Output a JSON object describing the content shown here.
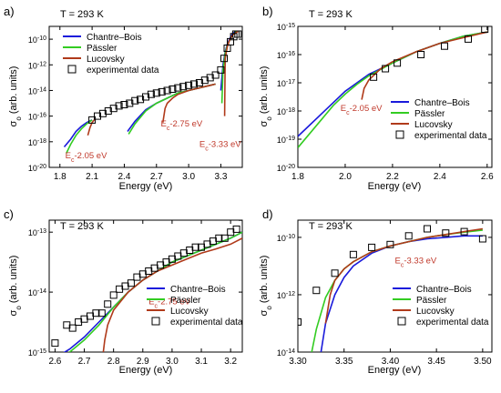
{
  "figure": {
    "colors": {
      "chantre": "#1a1adb",
      "passler": "#33cc22",
      "lucovsky": "#b03a1a",
      "annotation": "#c0392b",
      "axis": "#000000"
    }
  },
  "chart_data": [
    {
      "panel_label": "a)",
      "type": "line",
      "temperature_label": "T = 293 K",
      "xlabel": "Energy (eV)",
      "ylabel": "σ",
      "ylabel_sub": "o",
      "ylabel_units": " (arb. units)",
      "xlim": [
        1.7,
        3.5
      ],
      "ylim_exp": [
        -20,
        -9
      ],
      "yscale": "log",
      "xticks": [
        1.8,
        2.1,
        2.4,
        2.7,
        3.0,
        3.3
      ],
      "xtick_labels": [
        "1.8",
        "2.1",
        "2.4",
        "2.7",
        "3.0",
        "3.3"
      ],
      "yticks_exp": [
        -20,
        -18,
        -16,
        -14,
        -12,
        -10
      ],
      "legend": {
        "position": "top-left",
        "entries": [
          "Chantre–Bois",
          "Pässler",
          "Lucovsky",
          "experimental data"
        ]
      },
      "annotations": [
        {
          "text": "E",
          "sub": "c",
          "rest": "-2.05 eV",
          "at": [
            1.85,
            -19.3
          ]
        },
        {
          "text": "E",
          "sub": "c",
          "rest": "-2.75 eV",
          "at": [
            2.74,
            -16.8
          ]
        },
        {
          "text": "E",
          "sub": "c",
          "rest": "-3.33 eV",
          "at": [
            3.1,
            -18.4
          ]
        }
      ],
      "series": [
        {
          "name": "Chantre–Bois",
          "kind": "line",
          "segments": [
            {
              "x": [
                1.84,
                1.9,
                1.95,
                2.0,
                2.05,
                2.1
              ],
              "y_exp": [
                -18.4,
                -17.8,
                -17.2,
                -16.8,
                -16.5,
                -16.3
              ]
            },
            {
              "x": [
                2.43,
                2.5,
                2.6,
                2.7,
                2.8,
                2.9,
                3.0,
                3.1,
                3.2,
                3.25
              ],
              "y_exp": [
                -17.2,
                -16.4,
                -15.5,
                -15.0,
                -14.6,
                -14.2,
                -14.0,
                -13.8,
                -13.6,
                -13.5
              ]
            },
            {
              "x": [
                3.3,
                3.32,
                3.34,
                3.36,
                3.38,
                3.4,
                3.42,
                3.44,
                3.46
              ],
              "y_exp": [
                -14.0,
                -12.0,
                -11.0,
                -10.4,
                -10.0,
                -9.7,
                -9.5,
                -9.4,
                -9.4
              ]
            }
          ]
        },
        {
          "name": "Pässler",
          "kind": "line",
          "segments": [
            {
              "x": [
                1.86,
                1.9,
                1.95,
                2.0,
                2.05,
                2.1
              ],
              "y_exp": [
                -18.9,
                -18.2,
                -17.5,
                -17.0,
                -16.6,
                -16.3
              ]
            },
            {
              "x": [
                2.44,
                2.5,
                2.6,
                2.7,
                2.8,
                2.9,
                3.0,
                3.1,
                3.2,
                3.25
              ],
              "y_exp": [
                -17.4,
                -16.6,
                -15.6,
                -15.0,
                -14.6,
                -14.2,
                -14.0,
                -13.8,
                -13.6,
                -13.5
              ]
            },
            {
              "x": [
                3.31,
                3.32,
                3.34,
                3.36,
                3.38,
                3.4,
                3.42,
                3.44,
                3.46
              ],
              "y_exp": [
                -15.0,
                -12.4,
                -11.1,
                -10.5,
                -10.1,
                -9.8,
                -9.6,
                -9.4,
                -9.4
              ]
            }
          ]
        },
        {
          "name": "Lucovsky",
          "kind": "line",
          "segments": [
            {
              "x": [
                2.06,
                2.08,
                2.1,
                2.13
              ],
              "y_exp": [
                -17.5,
                -16.9,
                -16.5,
                -16.2
              ]
            },
            {
              "x": [
                2.76,
                2.78,
                2.8,
                2.85,
                2.9,
                3.0,
                3.1,
                3.2,
                3.25
              ],
              "y_exp": [
                -16.5,
                -15.4,
                -15.0,
                -14.6,
                -14.3,
                -14.0,
                -13.8,
                -13.6,
                -13.5
              ]
            },
            {
              "x": [
                3.335,
                3.34,
                3.36,
                3.38,
                3.4,
                3.42,
                3.44,
                3.46
              ],
              "y_exp": [
                -16.0,
                -11.5,
                -10.6,
                -10.1,
                -9.8,
                -9.6,
                -9.5,
                -9.4
              ]
            }
          ]
        },
        {
          "name": "experimental data",
          "kind": "scatter",
          "x": [
            2.1,
            2.15,
            2.2,
            2.25,
            2.3,
            2.35,
            2.4,
            2.45,
            2.5,
            2.55,
            2.6,
            2.65,
            2.7,
            2.75,
            2.8,
            2.85,
            2.9,
            2.95,
            3.0,
            3.05,
            3.1,
            3.15,
            3.2,
            3.25,
            3.3,
            3.33,
            3.36,
            3.39,
            3.42,
            3.44,
            3.46
          ],
          "y_exp": [
            -16.3,
            -16.0,
            -15.8,
            -15.6,
            -15.4,
            -15.2,
            -15.1,
            -15.0,
            -14.8,
            -14.7,
            -14.5,
            -14.3,
            -14.2,
            -14.1,
            -14.0,
            -13.9,
            -13.8,
            -13.7,
            -13.6,
            -13.5,
            -13.4,
            -13.2,
            -13.0,
            -12.8,
            -12.4,
            -11.5,
            -10.7,
            -10.2,
            -9.8,
            -9.6,
            -9.6
          ]
        }
      ]
    },
    {
      "panel_label": "b)",
      "type": "line",
      "temperature_label": "T = 293 K",
      "xlabel": "Energy (eV)",
      "ylabel": "σ",
      "ylabel_sub": "o",
      "ylabel_units": " (arb. units)",
      "xlim": [
        1.8,
        2.62
      ],
      "ylim_exp": [
        -20,
        -15
      ],
      "yscale": "log",
      "xticks": [
        1.8,
        2.0,
        2.2,
        2.4,
        2.6
      ],
      "xtick_labels": [
        "1.8",
        "2.0",
        "2.2",
        "2.4",
        "2.6"
      ],
      "yticks_exp": [
        -20,
        -19,
        -18,
        -17,
        -16,
        -15
      ],
      "legend": {
        "position": "bottom-right",
        "entries": [
          "Chantre–Bois",
          "Pässler",
          "Lucovsky",
          "experimental data"
        ]
      },
      "annotations": [
        {
          "text": "E",
          "sub": "c",
          "rest": "-2.05 eV",
          "at": [
            1.98,
            -18.0
          ]
        }
      ],
      "series": [
        {
          "name": "Chantre–Bois",
          "kind": "line",
          "segments": [
            {
              "x": [
                1.8,
                1.85,
                1.9,
                1.95,
                2.0,
                2.05,
                2.1,
                2.2,
                2.3,
                2.4,
                2.5,
                2.6
              ],
              "y_exp": [
                -18.9,
                -18.5,
                -18.1,
                -17.7,
                -17.3,
                -17.0,
                -16.7,
                -16.3,
                -15.9,
                -15.6,
                -15.35,
                -15.2
              ]
            }
          ]
        },
        {
          "name": "Pässler",
          "kind": "line",
          "segments": [
            {
              "x": [
                1.8,
                1.85,
                1.9,
                1.95,
                2.0,
                2.05,
                2.1,
                2.2,
                2.3,
                2.4,
                2.5,
                2.6
              ],
              "y_exp": [
                -19.3,
                -18.8,
                -18.3,
                -17.8,
                -17.4,
                -17.05,
                -16.75,
                -16.3,
                -15.9,
                -15.6,
                -15.35,
                -15.2
              ]
            }
          ]
        },
        {
          "name": "Lucovsky",
          "kind": "line",
          "segments": [
            {
              "x": [
                2.07,
                2.08,
                2.1,
                2.15,
                2.2,
                2.3,
                2.4,
                2.5,
                2.6
              ],
              "y_exp": [
                -17.6,
                -17.2,
                -16.9,
                -16.5,
                -16.25,
                -15.9,
                -15.6,
                -15.4,
                -15.2
              ]
            }
          ]
        },
        {
          "name": "experimental data",
          "kind": "scatter",
          "x": [
            2.12,
            2.17,
            2.22,
            2.32,
            2.42,
            2.52,
            2.59
          ],
          "y_exp": [
            -16.8,
            -16.5,
            -16.3,
            -16.0,
            -15.7,
            -15.45,
            -15.1
          ]
        }
      ]
    },
    {
      "panel_label": "c)",
      "type": "line",
      "temperature_label": "T = 293 K",
      "xlabel": "Energy (eV)",
      "ylabel": "σ",
      "ylabel_sub": "o",
      "ylabel_units": " (arb. units)",
      "xlim": [
        2.58,
        3.24
      ],
      "ylim_exp": [
        -15,
        -12.8
      ],
      "yscale": "log",
      "xticks": [
        2.6,
        2.7,
        2.8,
        2.9,
        3.0,
        3.1,
        3.2
      ],
      "xtick_labels": [
        "2.6",
        "2.7",
        "2.8",
        "2.9",
        "3.0",
        "3.1",
        "3.2"
      ],
      "yticks_exp": [
        -15,
        -14,
        -13
      ],
      "legend": {
        "position": "bottom-right",
        "entries": [
          "Chantre–Bois",
          "Pässler",
          "Lucovsky",
          "experimental data"
        ]
      },
      "annotations": [
        {
          "text": "E",
          "sub": "c",
          "rest": "-2.75 eV",
          "at": [
            2.92,
            -14.2
          ]
        }
      ],
      "series": [
        {
          "name": "Chantre–Bois",
          "kind": "line",
          "segments": [
            {
              "x": [
                2.6,
                2.65,
                2.7,
                2.75,
                2.8,
                2.85,
                2.9,
                2.95,
                3.0,
                3.05,
                3.1,
                3.15,
                3.2,
                3.24
              ],
              "y_exp": [
                -15.1,
                -14.95,
                -14.75,
                -14.5,
                -14.25,
                -14.0,
                -13.8,
                -13.65,
                -13.5,
                -13.4,
                -13.3,
                -13.2,
                -13.1,
                -13.0
              ]
            }
          ]
        },
        {
          "name": "Pässler",
          "kind": "line",
          "segments": [
            {
              "x": [
                2.6,
                2.65,
                2.7,
                2.75,
                2.8,
                2.85,
                2.9,
                2.95,
                3.0,
                3.05,
                3.1,
                3.15,
                3.2,
                3.24
              ],
              "y_exp": [
                -15.15,
                -15.0,
                -14.8,
                -14.55,
                -14.25,
                -14.0,
                -13.8,
                -13.65,
                -13.5,
                -13.4,
                -13.3,
                -13.2,
                -13.1,
                -13.0
              ]
            }
          ]
        },
        {
          "name": "Lucovsky",
          "kind": "line",
          "segments": [
            {
              "x": [
                2.765,
                2.77,
                2.78,
                2.8,
                2.85,
                2.9,
                2.95,
                3.0,
                3.05,
                3.1,
                3.15,
                3.2,
                3.24
              ],
              "y_exp": [
                -15.0,
                -14.8,
                -14.55,
                -14.3,
                -14.0,
                -13.8,
                -13.65,
                -13.55,
                -13.45,
                -13.35,
                -13.28,
                -13.2,
                -13.1
              ]
            }
          ]
        },
        {
          "name": "experimental data",
          "kind": "scatter",
          "x": [
            2.6,
            2.64,
            2.66,
            2.68,
            2.7,
            2.72,
            2.74,
            2.76,
            2.78,
            2.8,
            2.82,
            2.84,
            2.86,
            2.88,
            2.9,
            2.92,
            2.94,
            2.96,
            2.98,
            3.0,
            3.02,
            3.04,
            3.06,
            3.08,
            3.1,
            3.12,
            3.14,
            3.16,
            3.18,
            3.2,
            3.22,
            3.24
          ],
          "y_exp": [
            -14.85,
            -14.55,
            -14.6,
            -14.5,
            -14.45,
            -14.4,
            -14.35,
            -14.35,
            -14.2,
            -14.05,
            -13.95,
            -13.9,
            -13.85,
            -13.75,
            -13.7,
            -13.65,
            -13.6,
            -13.55,
            -13.5,
            -13.45,
            -13.4,
            -13.35,
            -13.3,
            -13.25,
            -13.25,
            -13.2,
            -13.15,
            -13.1,
            -13.1,
            -13.0,
            -12.95,
            -12.75
          ]
        }
      ]
    },
    {
      "panel_label": "d)",
      "type": "line",
      "temperature_label": "T = 293 K",
      "xlabel": "Energy (eV)",
      "ylabel": "σ",
      "ylabel_sub": "o",
      "ylabel_units": " (arb. units)",
      "xlim": [
        3.3,
        3.51
      ],
      "ylim_exp": [
        -14,
        -9.4
      ],
      "yscale": "log",
      "xticks": [
        3.3,
        3.35,
        3.4,
        3.45,
        3.5
      ],
      "xtick_labels": [
        "3.30",
        "3.35",
        "3.40",
        "3.45",
        "3.50"
      ],
      "yticks_exp": [
        -14,
        -12,
        -10
      ],
      "legend": {
        "position": "bottom-right",
        "entries": [
          "Chantre–Bois",
          "Pässler",
          "Lucovsky",
          "experimental data"
        ]
      },
      "annotations": [
        {
          "text": "E",
          "sub": "c",
          "rest": "-3.33 eV",
          "at": [
            3.405,
            -10.9
          ]
        }
      ],
      "series": [
        {
          "name": "Chantre–Bois",
          "kind": "line",
          "segments": [
            {
              "x": [
                3.325,
                3.33,
                3.34,
                3.35,
                3.36,
                3.38,
                3.4,
                3.42,
                3.44,
                3.46,
                3.48,
                3.5
              ],
              "y_exp": [
                -14.0,
                -13.0,
                -12.0,
                -11.4,
                -11.0,
                -10.55,
                -10.3,
                -10.15,
                -10.05,
                -10.0,
                -9.95,
                -9.95
              ]
            }
          ]
        },
        {
          "name": "Pässler",
          "kind": "line",
          "segments": [
            {
              "x": [
                3.315,
                3.32,
                3.33,
                3.34,
                3.35,
                3.36,
                3.38,
                3.4,
                3.42,
                3.44,
                3.46,
                3.48,
                3.5
              ],
              "y_exp": [
                -14.0,
                -13.2,
                -12.1,
                -11.5,
                -11.1,
                -10.85,
                -10.5,
                -10.3,
                -10.15,
                -10.0,
                -9.9,
                -9.82,
                -9.75
              ]
            }
          ]
        },
        {
          "name": "Lucovsky",
          "kind": "line",
          "segments": [
            {
              "x": [
                3.33,
                3.335,
                3.34,
                3.35,
                3.36,
                3.38,
                3.4,
                3.42,
                3.44,
                3.46,
                3.48,
                3.5
              ],
              "y_exp": [
                -13.0,
                -12.0,
                -11.5,
                -11.1,
                -10.85,
                -10.5,
                -10.3,
                -10.15,
                -10.0,
                -9.9,
                -9.8,
                -9.7
              ]
            }
          ]
        },
        {
          "name": "experimental data",
          "kind": "scatter",
          "x": [
            3.3,
            3.32,
            3.34,
            3.36,
            3.38,
            3.4,
            3.42,
            3.44,
            3.46,
            3.48,
            3.5
          ],
          "y_exp": [
            -12.95,
            -11.85,
            -11.25,
            -10.6,
            -10.35,
            -10.25,
            -9.95,
            -9.7,
            -9.85,
            -9.8,
            -10.05
          ]
        }
      ]
    }
  ]
}
